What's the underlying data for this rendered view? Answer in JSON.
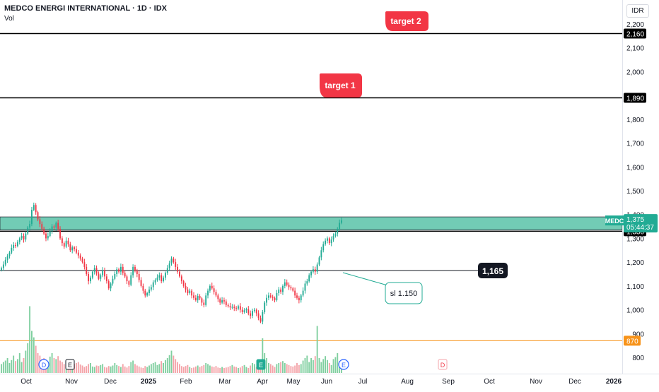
{
  "header": {
    "title": "MEDCO ENERGI INTERNATIONAL · 1D · IDX",
    "volume_label": "Vol",
    "currency": "IDR"
  },
  "chart_data": {
    "type": "candlestick",
    "symbol": "MEDC",
    "currency": "IDR",
    "ylim": [
      780,
      2240
    ],
    "y_ticks": [
      "2,200",
      "2,100",
      "2,000",
      "1,900",
      "1,800",
      "1,700",
      "1,600",
      "1,500",
      "1,400",
      "1,300",
      "1,200",
      "1,100",
      "1,000",
      "900",
      "800"
    ],
    "x_ticks": [
      "Oct",
      "Nov",
      "Dec",
      "2025",
      "Feb",
      "Mar",
      "Apr",
      "May",
      "Jun",
      "Jul",
      "Aug",
      "Sep",
      "Oct",
      "Nov",
      "Dec",
      "2026"
    ],
    "last_price": "1,375",
    "countdown": "05:44:37",
    "price_levels": [
      {
        "value": 2160,
        "label": "2,160",
        "color": "#000000"
      },
      {
        "value": 1890,
        "label": "1,890",
        "color": "#000000"
      },
      {
        "value": 1330,
        "label": "1,330",
        "color": "#000000"
      },
      {
        "value": 870,
        "label": "870",
        "color": "#f7931a"
      }
    ],
    "support_line": {
      "value": 1165,
      "label": "1,165"
    },
    "zone": {
      "low": 1335,
      "high": 1390,
      "color": "#4fbfa2"
    },
    "annotations": [
      {
        "text": "target 2",
        "color": "#f23645"
      },
      {
        "text": "target 1",
        "color": "#f23645"
      },
      {
        "text": "sl 1.150",
        "color": "#22ab94"
      }
    ],
    "event_markers": [
      "D",
      "E",
      "E",
      "D",
      "E"
    ],
    "colors": {
      "up": "#22ab94",
      "down": "#f23645",
      "up_volume": "#7fcf9f",
      "down_volume": "#f4a3a8"
    },
    "series": [
      {
        "name": "MEDC",
        "close": [
          1175,
          1190,
          1210,
          1225,
          1240,
          1260,
          1272,
          1268,
          1285,
          1300,
          1310,
          1295,
          1320,
          1345,
          1360,
          1420,
          1440,
          1410,
          1380,
          1360,
          1340,
          1320,
          1300,
          1310,
          1330,
          1350,
          1345,
          1365,
          1340,
          1300,
          1280,
          1265,
          1290,
          1275,
          1250,
          1262,
          1255,
          1240,
          1228,
          1215,
          1200,
          1180,
          1150,
          1120,
          1135,
          1160,
          1175,
          1152,
          1130,
          1145,
          1165,
          1140,
          1120,
          1090,
          1110,
          1130,
          1150,
          1170,
          1160,
          1180,
          1155,
          1140,
          1120,
          1105,
          1145,
          1180,
          1165,
          1150,
          1125,
          1100,
          1080,
          1060,
          1070,
          1085,
          1095,
          1115,
          1125,
          1135,
          1145,
          1120,
          1135,
          1155,
          1175,
          1195,
          1215,
          1200,
          1180,
          1160,
          1140,
          1120,
          1100,
          1085,
          1070,
          1080,
          1060,
          1050,
          1040,
          1058,
          1048,
          1030,
          1020,
          1060,
          1080,
          1100,
          1090,
          1075,
          1060,
          1045,
          1030,
          1040,
          1035,
          1020,
          1015,
          1010,
          1012,
          1008,
          1005,
          1015,
          1000,
          990,
          998,
          1002,
          985,
          975,
          995,
          1000,
          985,
          965,
          950,
          990,
          1030,
          1050,
          1060,
          1055,
          1050,
          1040,
          1070,
          1085,
          1075,
          1100,
          1115,
          1105,
          1095,
          1090,
          1080,
          1060,
          1050,
          1040,
          1060,
          1080,
          1110,
          1120,
          1145,
          1160,
          1170,
          1160,
          1190,
          1220,
          1250,
          1275,
          1290,
          1300,
          1280,
          1295,
          1310,
          1320,
          1340,
          1365,
          1375
        ]
      },
      {
        "name": "Vol",
        "volume": [
          18,
          22,
          25,
          30,
          20,
          26,
          35,
          24,
          28,
          40,
          22,
          30,
          45,
          60,
          135,
          85,
          72,
          55,
          40,
          35,
          28,
          30,
          25,
          22,
          33,
          40,
          30,
          28,
          34,
          25,
          22,
          18,
          20,
          16,
          15,
          14,
          18,
          20,
          22,
          17,
          15,
          12,
          14,
          18,
          20,
          13,
          12,
          15,
          14,
          16,
          18,
          12,
          11,
          14,
          13,
          15,
          20,
          16,
          14,
          12,
          18,
          13,
          11,
          14,
          22,
          25,
          18,
          15,
          13,
          11,
          10,
          14,
          12,
          15,
          18,
          20,
          22,
          16,
          18,
          24,
          20,
          26,
          30,
          36,
          45,
          35,
          28,
          22,
          18,
          14,
          12,
          14,
          16,
          12,
          10,
          11,
          13,
          15,
          12,
          14,
          16,
          20,
          18,
          15,
          13,
          12,
          14,
          11,
          10,
          12,
          10,
          11,
          12,
          14,
          16,
          13,
          12,
          10,
          11,
          14,
          16,
          12,
          10,
          15,
          20,
          18,
          12,
          10,
          16,
          70,
          40,
          30,
          20,
          18,
          15,
          12,
          18,
          20,
          22,
          24,
          20,
          18,
          16,
          14,
          13,
          15,
          20,
          16,
          18,
          25,
          30,
          35,
          22,
          30,
          26,
          34,
          95,
          30,
          22,
          28,
          34,
          26,
          20,
          16,
          28,
          32,
          40,
          18,
          14,
          50
        ]
      }
    ]
  }
}
